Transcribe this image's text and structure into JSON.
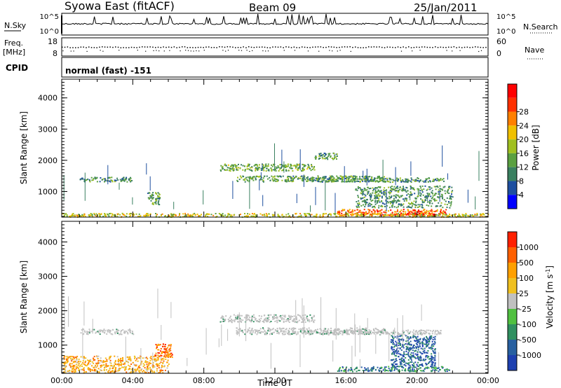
{
  "header": {
    "station": "Syowa East (fitACF)",
    "beam": "Beam 09",
    "date": "25/Jan/2011"
  },
  "status_panels": {
    "nsky": {
      "label": "N.Sky",
      "ticks": [
        "10^5",
        "10^0"
      ]
    },
    "nsearch": {
      "label": "N.Search",
      "ticks": [
        "10^5",
        "10^0"
      ]
    },
    "freq": {
      "label_lines": [
        "Freq.",
        "[MHz]"
      ],
      "ticks": [
        "18",
        "8"
      ]
    },
    "nave": {
      "label": "Nave",
      "ticks": [
        "60",
        "0"
      ]
    },
    "cpid": {
      "label": "CPID",
      "value": "normal (fast) -151"
    }
  },
  "colors": {
    "power": [
      "#0000ff",
      "#1e4fa0",
      "#3a8060",
      "#5aa040",
      "#a0c020",
      "#f0c000",
      "#ff8000",
      "#ff3000",
      "#ff0000"
    ],
    "velocity": [
      "#1e40b0",
      "#2860a0",
      "#309060",
      "#50c040",
      "#c0c0c0",
      "#f0c020",
      "#ffa000",
      "#ff6000",
      "#ff2000"
    ]
  },
  "chart_data": [
    {
      "type": "heatmap",
      "name": "power",
      "ylabel": "Slant Range [km]",
      "xlabel": "",
      "ylim": [
        180,
        4600
      ],
      "yticks": [
        1000,
        2000,
        3000,
        4000
      ],
      "xlim": [
        0,
        24
      ],
      "xticks": [
        "00:00",
        "04:00",
        "08:00",
        "12:00",
        "16:00",
        "20:00",
        "00:00"
      ],
      "colorbar": {
        "label": "Power [dB]",
        "ticks": [
          "4",
          "8",
          "12",
          "16",
          "20",
          "24",
          "28"
        ],
        "range": [
          0,
          30
        ]
      },
      "bands": [
        {
          "t": [
            1.0,
            4.0
          ],
          "range": [
            1330,
            1480
          ],
          "level": 0.3
        },
        {
          "t": [
            8.9,
            14.2
          ],
          "range": [
            1680,
            1900
          ],
          "level": 0.4
        },
        {
          "t": [
            9.8,
            18.2
          ],
          "range": [
            1330,
            1520
          ],
          "level": 0.35
        },
        {
          "t": [
            13.8,
            21.5
          ],
          "range": [
            1320,
            1460
          ],
          "level": 0.3
        },
        {
          "t": [
            14.2,
            15.5
          ],
          "range": [
            2050,
            2250
          ],
          "level": 0.3
        },
        {
          "t": [
            15.5,
            21.6
          ],
          "range": [
            250,
            450
          ],
          "level": 0.8
        },
        {
          "t": [
            19.0,
            21.0
          ],
          "range": [
            240,
            340
          ],
          "level": 0.95
        },
        {
          "t": [
            0.0,
            24.0
          ],
          "range": [
            200,
            320
          ],
          "level": 0.55
        },
        {
          "t": [
            4.8,
            5.5
          ],
          "range": [
            600,
            1000
          ],
          "level": 0.35
        },
        {
          "t": [
            16.5,
            22.0
          ],
          "range": [
            500,
            1200
          ],
          "level": 0.3
        }
      ]
    },
    {
      "type": "heatmap",
      "name": "velocity",
      "ylabel": "Slant Range [km]",
      "xlabel": "Time UT",
      "ylim": [
        180,
        4600
      ],
      "yticks": [
        1000,
        2000,
        3000,
        4000
      ],
      "xlim": [
        0,
        24
      ],
      "xticks": [
        "00:00",
        "04:00",
        "08:00",
        "12:00",
        "16:00",
        "20:00",
        "00:00"
      ],
      "colorbar": {
        "label": "Velocity [m s^-1]",
        "ticks": [
          "1000",
          "500",
          "100",
          "25",
          "-25",
          "-100",
          "-500",
          "-1000"
        ]
      },
      "bands": [
        {
          "t": [
            1.0,
            4.0
          ],
          "range": [
            1330,
            1480
          ],
          "level": 0.5
        },
        {
          "t": [
            8.9,
            14.2
          ],
          "range": [
            1680,
            1900
          ],
          "level": 0.5
        },
        {
          "t": [
            9.8,
            18.2
          ],
          "range": [
            1330,
            1520
          ],
          "level": 0.5
        },
        {
          "t": [
            13.8,
            21.5
          ],
          "range": [
            1320,
            1460
          ],
          "level": 0.5
        },
        {
          "t": [
            15.5,
            21.8
          ],
          "range": [
            250,
            400
          ],
          "level": 0.2
        },
        {
          "t": [
            18.5,
            21.0
          ],
          "range": [
            400,
            1300
          ],
          "level": 0.1
        },
        {
          "t": [
            0.0,
            6.0
          ],
          "range": [
            200,
            700
          ],
          "level": 0.7
        },
        {
          "t": [
            5.2,
            6.2
          ],
          "range": [
            650,
            1050
          ],
          "level": 0.85
        }
      ]
    }
  ]
}
